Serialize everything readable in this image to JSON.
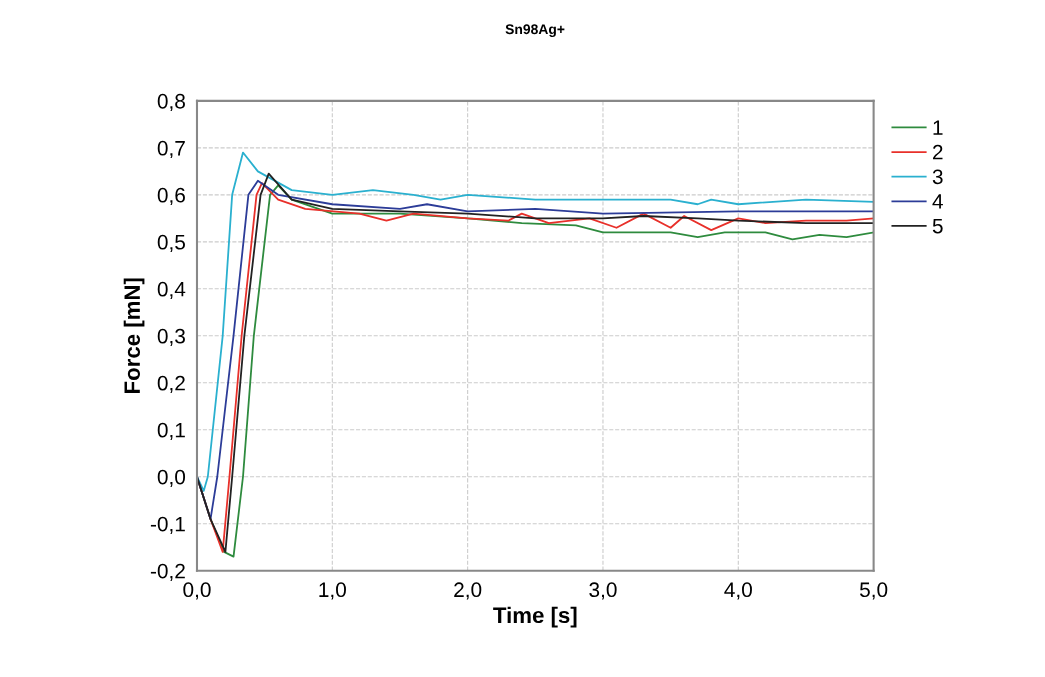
{
  "chart_data": {
    "type": "line",
    "title": "Sn98Ag+",
    "xlabel": "Time [s]",
    "ylabel": "Force [mN]",
    "xlim": [
      0,
      5
    ],
    "ylim": [
      -0.2,
      0.8
    ],
    "xticks": [
      {
        "value": 0,
        "label": "0,0"
      },
      {
        "value": 1,
        "label": "1,0"
      },
      {
        "value": 2,
        "label": "2,0"
      },
      {
        "value": 3,
        "label": "3,0"
      },
      {
        "value": 4,
        "label": "4,0"
      },
      {
        "value": 5,
        "label": "5,0"
      }
    ],
    "yticks": [
      {
        "value": -0.2,
        "label": "-0,2"
      },
      {
        "value": -0.1,
        "label": "-0,1"
      },
      {
        "value": 0,
        "label": "0,0"
      },
      {
        "value": 0.1,
        "label": "0,1"
      },
      {
        "value": 0.2,
        "label": "0,2"
      },
      {
        "value": 0.3,
        "label": "0,3"
      },
      {
        "value": 0.4,
        "label": "0,4"
      },
      {
        "value": 0.5,
        "label": "0,5"
      },
      {
        "value": 0.6,
        "label": "0,6"
      },
      {
        "value": 0.7,
        "label": "0,7"
      },
      {
        "value": 0.8,
        "label": "0,8"
      }
    ],
    "grid": true,
    "legend": "top right",
    "line_style": "solid",
    "marker": "none",
    "series": [
      {
        "name": "1",
        "color": "#2e8b3e",
        "x": [
          0,
          0.1,
          0.2,
          0.27,
          0.34,
          0.42,
          0.54,
          0.6,
          0.7,
          1.0,
          1.5,
          2.0,
          2.4,
          2.8,
          3.0,
          3.5,
          3.7,
          3.9,
          4.2,
          4.4,
          4.6,
          4.8,
          5.0
        ],
        "values": [
          0,
          -0.09,
          -0.16,
          -0.17,
          0,
          0.3,
          0.6,
          0.62,
          0.59,
          0.56,
          0.56,
          0.55,
          0.54,
          0.535,
          0.52,
          0.52,
          0.51,
          0.52,
          0.52,
          0.505,
          0.515,
          0.51,
          0.52
        ]
      },
      {
        "name": "2",
        "color": "#e8302a",
        "x": [
          0,
          0.1,
          0.19,
          0.24,
          0.33,
          0.44,
          0.48,
          0.6,
          0.8,
          1.2,
          1.4,
          1.6,
          2.0,
          2.3,
          2.4,
          2.6,
          2.9,
          3.1,
          3.3,
          3.5,
          3.6,
          3.8,
          4.0,
          4.2,
          4.5,
          4.8,
          5.0
        ],
        "values": [
          0,
          -0.09,
          -0.16,
          0,
          0.3,
          0.6,
          0.625,
          0.59,
          0.57,
          0.56,
          0.545,
          0.56,
          0.55,
          0.545,
          0.56,
          0.54,
          0.55,
          0.53,
          0.56,
          0.53,
          0.555,
          0.525,
          0.55,
          0.54,
          0.545,
          0.545,
          0.55
        ]
      },
      {
        "name": "3",
        "color": "#2ab0cf",
        "x": [
          0,
          0.05,
          0.08,
          0.19,
          0.26,
          0.34,
          0.45,
          0.7,
          1.0,
          1.3,
          1.6,
          1.8,
          2.0,
          2.5,
          3.0,
          3.5,
          3.7,
          3.8,
          4.0,
          4.5,
          5.0
        ],
        "values": [
          0,
          -0.03,
          0,
          0.3,
          0.6,
          0.69,
          0.65,
          0.61,
          0.6,
          0.61,
          0.6,
          0.59,
          0.6,
          0.59,
          0.59,
          0.59,
          0.58,
          0.59,
          0.58,
          0.59,
          0.585
        ]
      },
      {
        "name": "4",
        "color": "#2c3c98",
        "x": [
          0,
          0.1,
          0.15,
          0.27,
          0.38,
          0.45,
          0.6,
          1.0,
          1.5,
          1.7,
          2.0,
          2.5,
          3.0,
          4.0,
          5.0
        ],
        "values": [
          0,
          -0.09,
          0,
          0.3,
          0.6,
          0.63,
          0.6,
          0.58,
          0.57,
          0.58,
          0.565,
          0.57,
          0.56,
          0.565,
          0.565
        ]
      },
      {
        "name": "5",
        "color": "#222222",
        "x": [
          0,
          0.1,
          0.21,
          0.26,
          0.35,
          0.47,
          0.53,
          0.7,
          1.0,
          1.5,
          2.0,
          2.5,
          3.0,
          3.3,
          3.7,
          4.0,
          4.5,
          5.0
        ],
        "values": [
          0,
          -0.09,
          -0.16,
          0,
          0.3,
          0.6,
          0.645,
          0.59,
          0.57,
          0.565,
          0.56,
          0.55,
          0.55,
          0.555,
          0.55,
          0.545,
          0.54,
          0.54
        ]
      }
    ]
  }
}
